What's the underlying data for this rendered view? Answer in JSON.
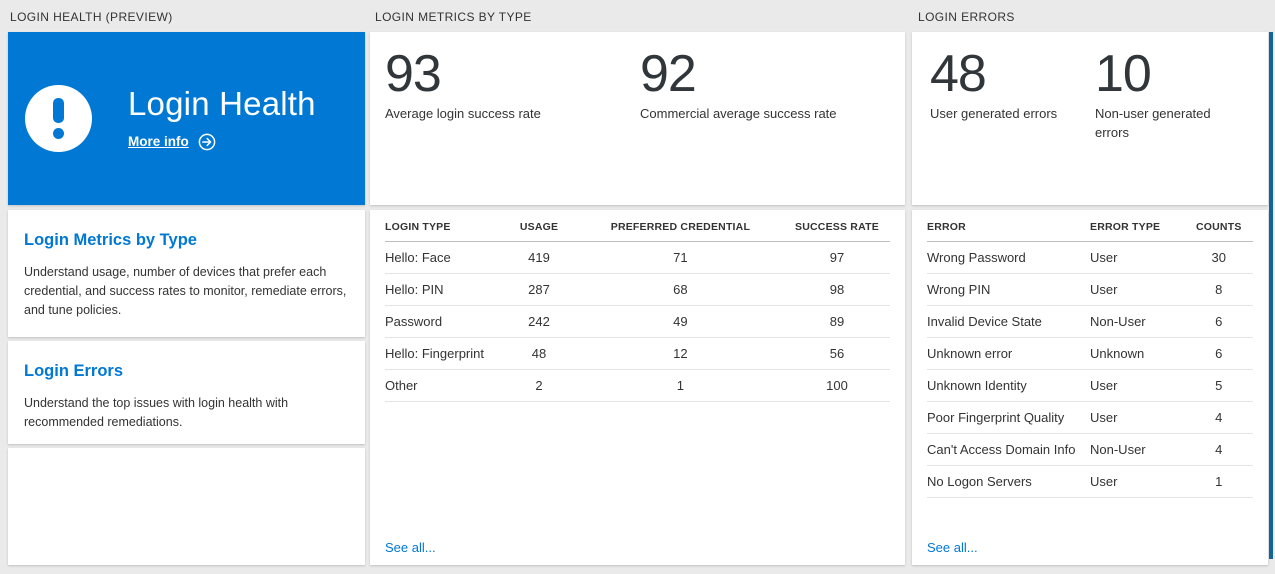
{
  "sections": {
    "health_title": "LOGIN HEALTH (PREVIEW)",
    "metrics_title": "LOGIN METRICS BY TYPE",
    "errors_title": "LOGIN ERRORS"
  },
  "health_tile": {
    "title": "Login Health",
    "more_info_label": "More info",
    "icon": "exclamation-icon",
    "more_info_icon": "arrow-right-circle-icon"
  },
  "nav_tiles": [
    {
      "title": "Login Metrics by Type",
      "description": "Understand usage, number of devices that prefer each credential, and success rates to monitor, remediate errors, and tune policies."
    },
    {
      "title": "Login Errors",
      "description": "Understand the top issues with login health with recommended remediations."
    }
  ],
  "metrics_panel": {
    "stats": [
      {
        "value": "93",
        "label": "Average login success rate"
      },
      {
        "value": "92",
        "label": "Commercial average success rate"
      }
    ],
    "table": {
      "columns": [
        "LOGIN TYPE",
        "USAGE",
        "PREFERRED CREDENTIAL",
        "SUCCESS RATE"
      ],
      "rows": [
        [
          "Hello: Face",
          "419",
          "71",
          "97"
        ],
        [
          "Hello: PIN",
          "287",
          "68",
          "98"
        ],
        [
          "Password",
          "242",
          "49",
          "89"
        ],
        [
          "Hello: Fingerprint",
          "48",
          "12",
          "56"
        ],
        [
          "Other",
          "2",
          "1",
          "100"
        ]
      ],
      "see_all_label": "See all..."
    }
  },
  "errors_panel": {
    "stats": [
      {
        "value": "48",
        "label": "User generated errors"
      },
      {
        "value": "10",
        "label": "Non-user generated errors"
      }
    ],
    "table": {
      "columns": [
        "ERROR",
        "ERROR TYPE",
        "COUNTS"
      ],
      "rows": [
        [
          "Wrong Password",
          "User",
          "30"
        ],
        [
          "Wrong PIN",
          "User",
          "8"
        ],
        [
          "Invalid Device State",
          "Non-User",
          "6"
        ],
        [
          "Unknown error",
          "Unknown",
          "6"
        ],
        [
          "Unknown Identity",
          "User",
          "5"
        ],
        [
          "Poor Fingerprint Quality",
          "User",
          "4"
        ],
        [
          "Can't Access Domain Info",
          "Non-User",
          "4"
        ],
        [
          "No Logon Servers",
          "User",
          "1"
        ]
      ],
      "see_all_label": "See all..."
    }
  },
  "colors": {
    "accent": "#0078d4",
    "page_background": "#eaeaea",
    "text": "#333333",
    "stat_value": "#31363b"
  }
}
